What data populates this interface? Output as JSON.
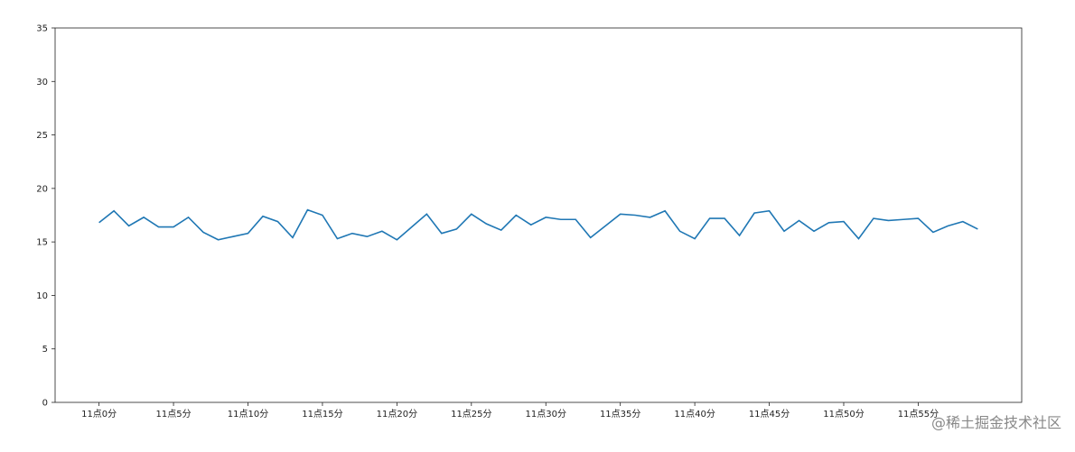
{
  "chart_data": {
    "type": "line",
    "x": [
      0,
      1,
      2,
      3,
      4,
      5,
      6,
      7,
      8,
      9,
      10,
      11,
      12,
      13,
      14,
      15,
      16,
      17,
      18,
      19,
      20,
      21,
      22,
      23,
      24,
      25,
      26,
      27,
      28,
      29,
      30,
      31,
      32,
      33,
      34,
      35,
      36,
      37,
      38,
      39,
      40,
      41,
      42,
      43,
      44,
      45,
      46,
      47,
      48,
      49,
      50,
      51,
      52,
      53,
      54,
      55,
      56,
      57,
      58,
      59
    ],
    "series": [
      {
        "color": "#1f77b4",
        "values": [
          16.8,
          17.9,
          16.5,
          17.3,
          16.4,
          16.4,
          17.3,
          15.9,
          15.2,
          15.5,
          15.8,
          17.4,
          16.9,
          15.4,
          18.0,
          17.5,
          15.3,
          15.8,
          15.5,
          16.0,
          15.2,
          16.4,
          17.6,
          15.8,
          16.2,
          17.6,
          16.7,
          16.1,
          17.5,
          16.6,
          17.3,
          17.1,
          17.1,
          15.4,
          16.5,
          17.6,
          17.5,
          17.3,
          17.9,
          16.0,
          15.3,
          17.2,
          17.2,
          15.6,
          17.7,
          17.9,
          16.0,
          17.0,
          16.0,
          16.8,
          16.9,
          15.3,
          17.2,
          17.0,
          17.1,
          17.2,
          15.9,
          16.5,
          16.9,
          16.2
        ]
      }
    ],
    "xlim": [
      -2.95,
      61.95
    ],
    "xticks": [
      {
        "value": 0,
        "label": "11点0分"
      },
      {
        "value": 5,
        "label": "11点5分"
      },
      {
        "value": 10,
        "label": "11点10分"
      },
      {
        "value": 15,
        "label": "11点15分"
      },
      {
        "value": 20,
        "label": "11点20分"
      },
      {
        "value": 25,
        "label": "11点25分"
      },
      {
        "value": 30,
        "label": "11点30分"
      },
      {
        "value": 35,
        "label": "11点35分"
      },
      {
        "value": 40,
        "label": "11点40分"
      },
      {
        "value": 45,
        "label": "11点45分"
      },
      {
        "value": 50,
        "label": "11点50分"
      },
      {
        "value": 55,
        "label": "11点55分"
      }
    ],
    "ylim": [
      0,
      35
    ],
    "yticks": [
      0,
      5,
      10,
      15,
      20,
      25,
      30,
      35
    ]
  },
  "watermark": "@稀土掘金技术社区"
}
